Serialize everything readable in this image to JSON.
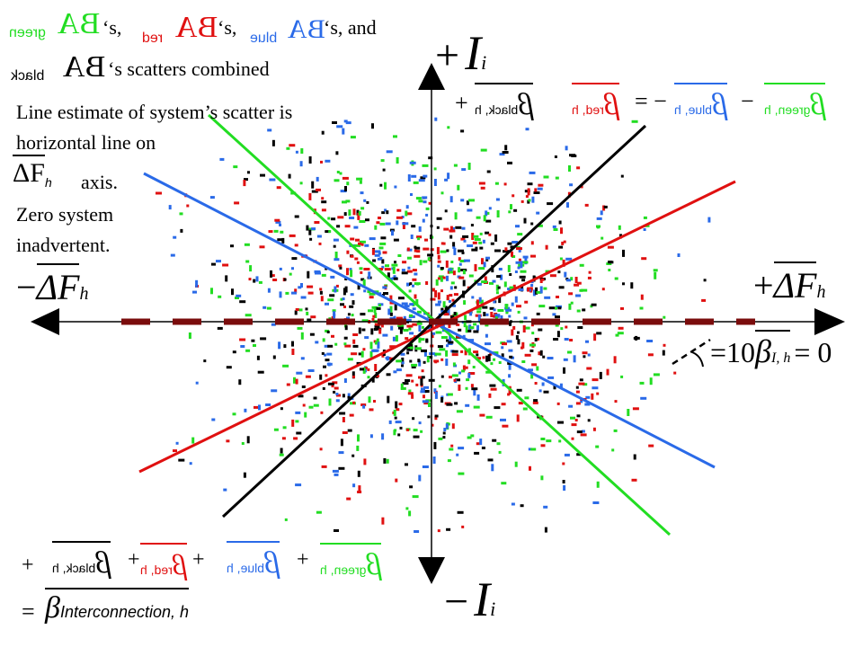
{
  "colors": {
    "green": "#22dd22",
    "red": "#e01010",
    "blue": "#2a6ae8",
    "black": "#000000",
    "dashed": "#7a0c0c"
  },
  "title": {
    "symbol": "BA",
    "sub_green": "green",
    "sub_red": "red",
    "sub_blue": "blue",
    "sub_black": "black",
    "sep1": "‘s,",
    "sep2": "‘s,",
    "sep3": "‘s, and",
    "tail": "‘s scatters combined"
  },
  "notes": {
    "line1": "Line estimate of system’s  scatter is",
    "line2": "horizontal line on",
    "delta_sub": "h",
    "axis_word": "axis.",
    "zero1": "Zero system",
    "zero2": "inadvertent."
  },
  "axes": {
    "plus_i": "+",
    "i_letter": "I",
    "i_sub": "i",
    "minus_i": "−",
    "plus_f": "+",
    "minus_f": "−",
    "delta_f": "ΔF",
    "f_sub": "h"
  },
  "top_equation": {
    "plus1": "+",
    "black_sub": "black, h",
    "red_sub": "red, h",
    "eq": "= −",
    "blue_sub": "blue, h",
    "minus": "−",
    "green_sub": "green, h"
  },
  "angle_eq": {
    "eq1": "=",
    "ten": "10",
    "beta": "β",
    "sub": "I, h",
    "eq2": "= 0"
  },
  "bottom_equation": {
    "plus1": "+",
    "black_sub": "black, h",
    "plus2": "+",
    "red_sub": "red, h",
    "plus3": "+",
    "blue_sub": "blue, h",
    "plus4": "+",
    "green_sub": "green, h",
    "eq": "=",
    "beta": "β",
    "result_sub": "Interconnection, h"
  }
}
